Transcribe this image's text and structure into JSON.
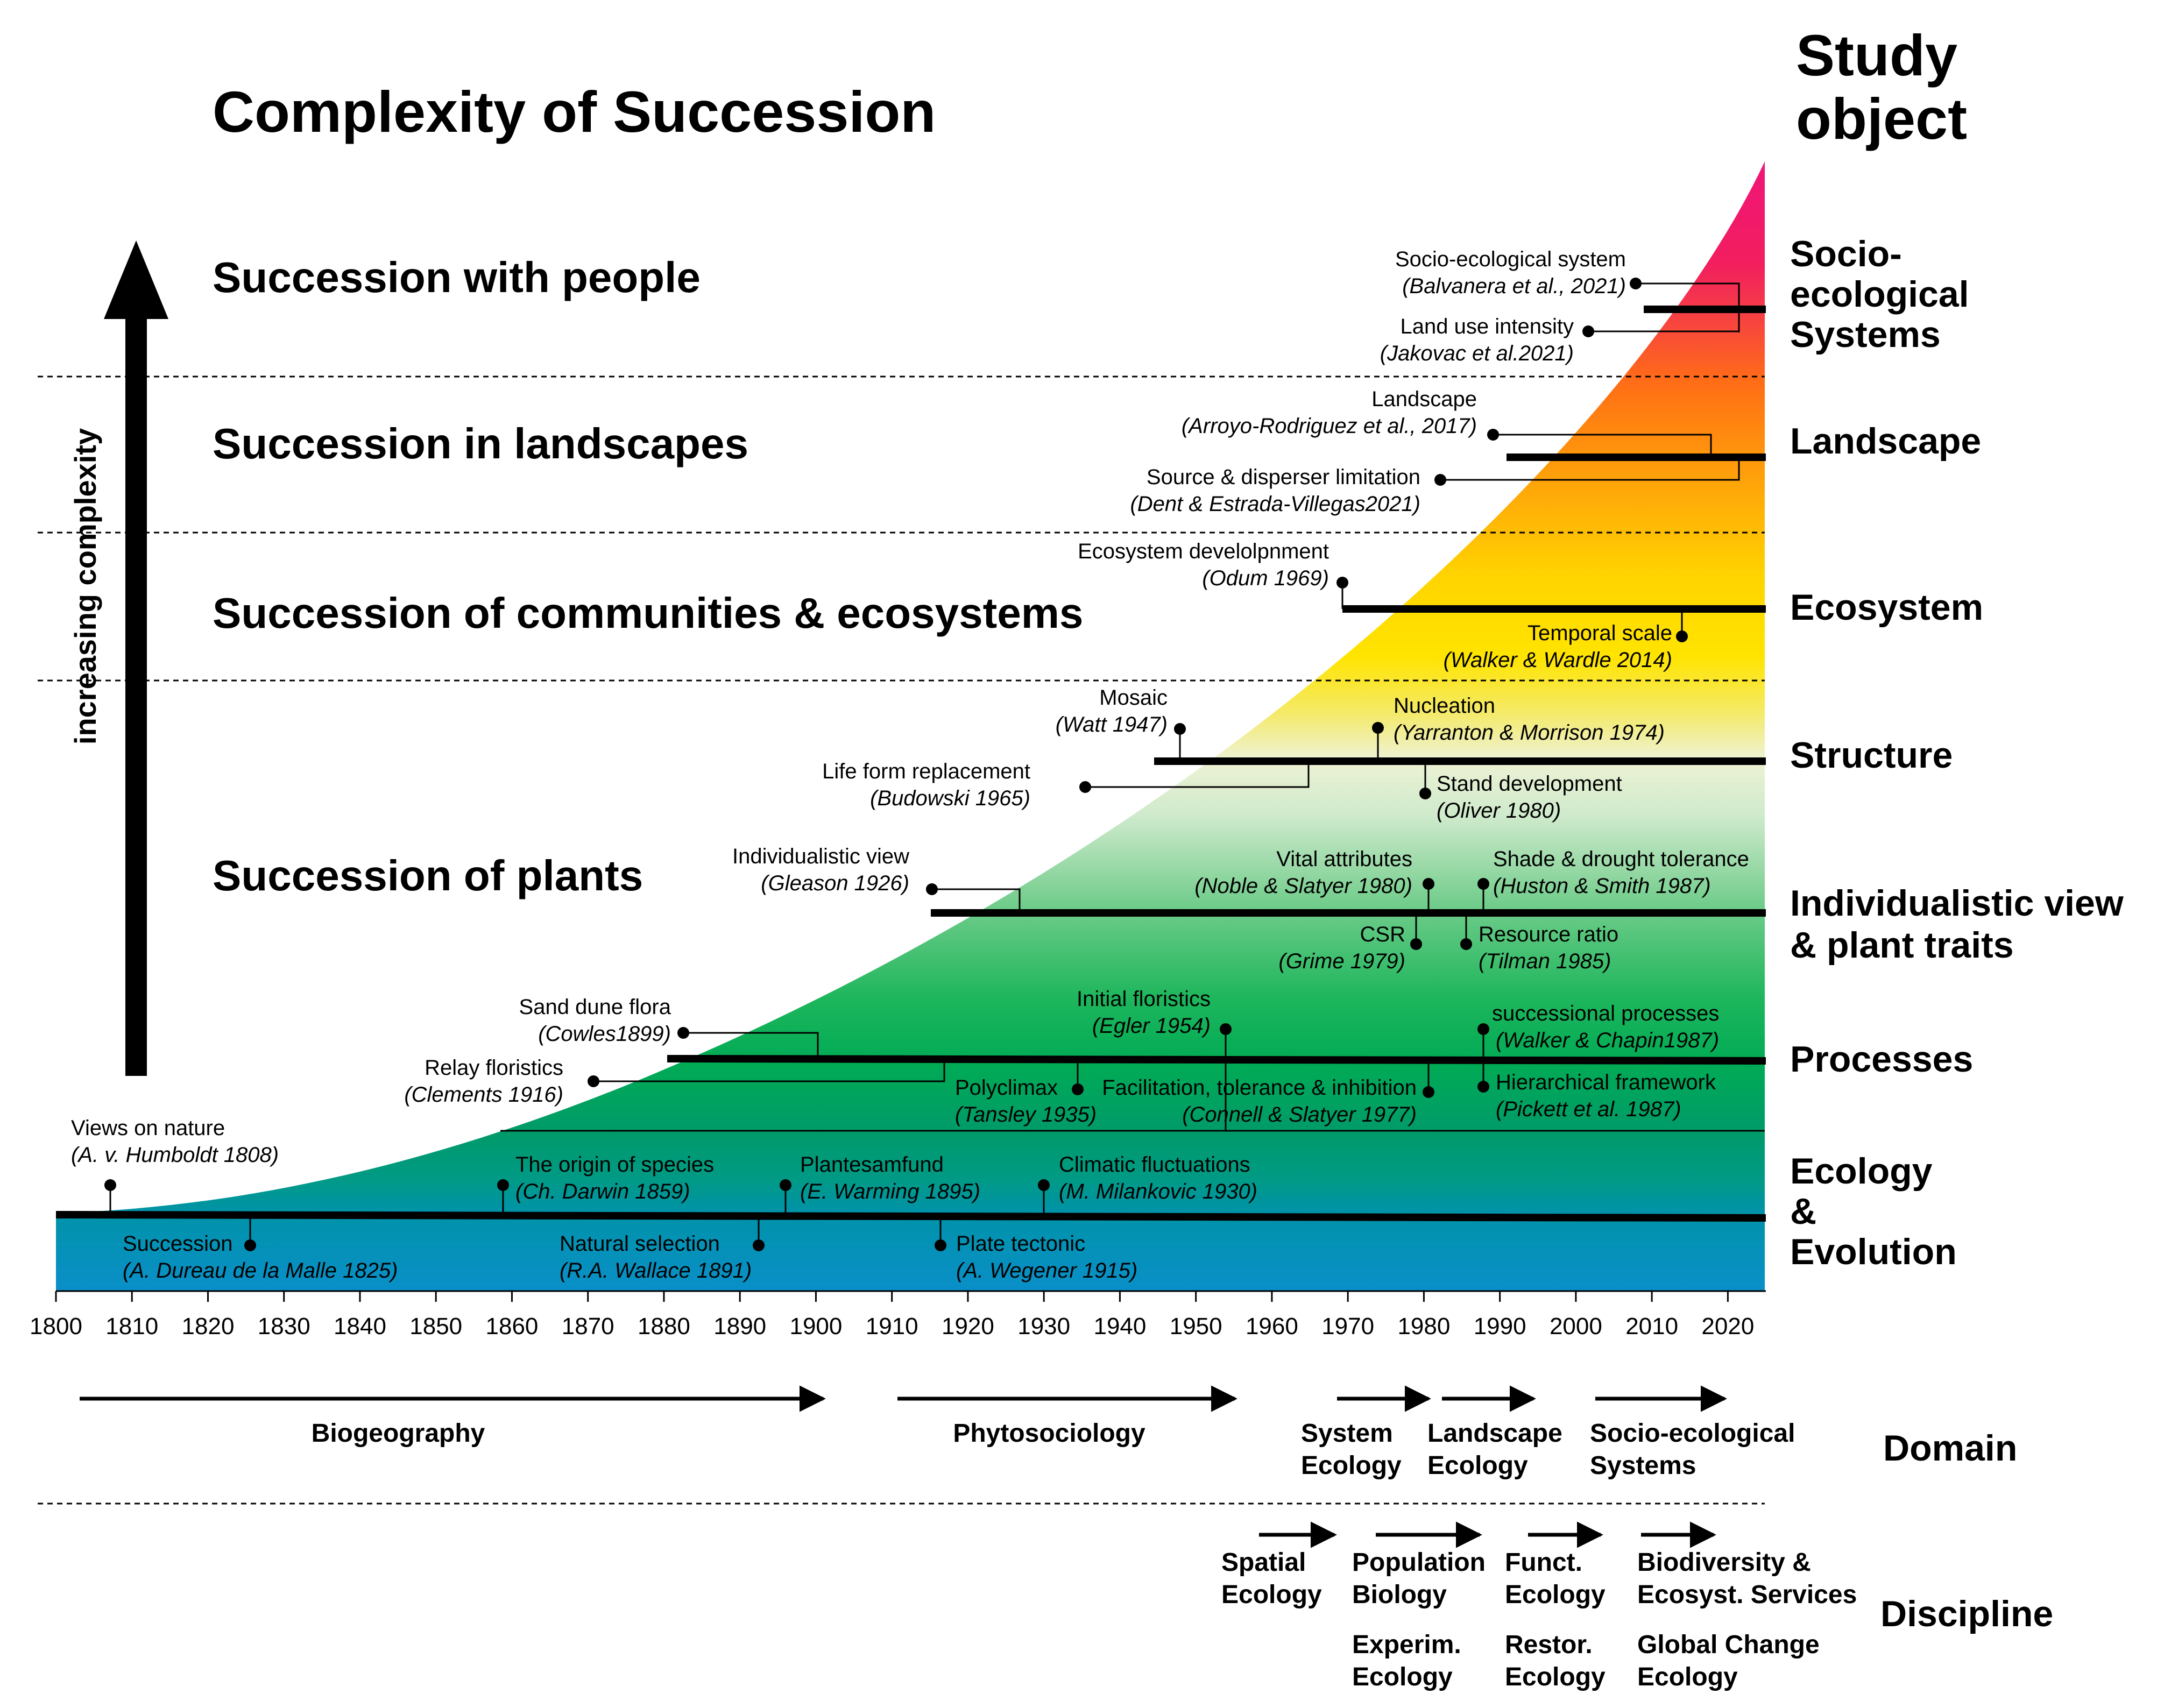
{
  "title": "Complexity of Succession",
  "y_axis_label": "increasing complexity",
  "study_object_heading": [
    "Study",
    "object"
  ],
  "levels": [
    {
      "label": "Succession with people"
    },
    {
      "label": "Succession in landscapes"
    },
    {
      "label": "Succession of communities & ecosystems"
    },
    {
      "label": "Succession of plants"
    }
  ],
  "study_objects": [
    {
      "lines": [
        "Socio-",
        "ecological",
        "Systems"
      ]
    },
    {
      "lines": [
        "Landscape"
      ]
    },
    {
      "lines": [
        "Ecosystem"
      ]
    },
    {
      "lines": [
        "Structure"
      ]
    },
    {
      "lines": [
        "Individualistic view",
        "& plant traits"
      ]
    },
    {
      "lines": [
        "Processes"
      ]
    },
    {
      "lines": [
        "Ecology",
        "&",
        "Evolution"
      ]
    }
  ],
  "colors": {
    "socio": "#f0167a",
    "landscape": "#ff7a10",
    "ecosystem": "#ffe000",
    "structure": "#cce8c2",
    "plants": "#00a35a",
    "ecology": "#009a86",
    "base": "#0a8fc9"
  },
  "x_axis": {
    "min": 1800,
    "max": 2025,
    "ticks": [
      1800,
      1810,
      1820,
      1830,
      1840,
      1850,
      1860,
      1870,
      1880,
      1890,
      1900,
      1910,
      1920,
      1930,
      1940,
      1950,
      1960,
      1970,
      1980,
      1990,
      2000,
      2010,
      2020
    ]
  },
  "events": [
    {
      "line1": "Views on nature",
      "line2": "(A. v. Humboldt 1808)"
    },
    {
      "line1": "Succession",
      "line2": "(A. Dureau de la Malle 1825)"
    },
    {
      "line1": "The origin of species",
      "line2": "(Ch. Darwin 1859)"
    },
    {
      "line1": "Natural selection",
      "line2": "(R.A. Wallace 1891)"
    },
    {
      "line1": "Plantesamfund",
      "line2": "(E. Warming 1895)"
    },
    {
      "line1": "Plate tectonic",
      "line2": "(A. Wegener 1915)"
    },
    {
      "line1": "Climatic fluctuations",
      "line2": "(M. Milankovic 1930)"
    },
    {
      "line1": "Relay floristics",
      "line2": "(Clements 1916)"
    },
    {
      "line1": "Sand dune flora",
      "line2": "(Cowles1899)"
    },
    {
      "line1": "Polyclimax",
      "line2": "(Tansley 1935)"
    },
    {
      "line1": "Initial floristics",
      "line2": "(Egler 1954)"
    },
    {
      "line1": "Facilitation, tolerance & inhibition",
      "line2": "(Connell & Slatyer 1977)"
    },
    {
      "line1": "successional processes",
      "line2": "(Walker & Chapin1987)"
    },
    {
      "line1": "Hierarchical framework",
      "line2": "(Pickett et al. 1987)"
    },
    {
      "line1": "Individualistic view",
      "line2": "(Gleason 1926)"
    },
    {
      "line1": "Vital attributes",
      "line2": "(Noble & Slatyer 1980)"
    },
    {
      "line1": "Shade & drought tolerance",
      "line2": "(Huston & Smith 1987)"
    },
    {
      "line1": "CSR",
      "line2": "(Grime 1979)"
    },
    {
      "line1": "Resource ratio",
      "line2": "(Tilman 1985)"
    },
    {
      "line1": "Mosaic",
      "line2": "(Watt 1947)"
    },
    {
      "line1": "Life form replacement",
      "line2": "(Budowski 1965)"
    },
    {
      "line1": "Nucleation",
      "line2": "(Yarranton & Morrison 1974)"
    },
    {
      "line1": "Stand development",
      "line2": "(Oliver 1980)"
    },
    {
      "line1": "Ecosystem develolpnment",
      "line2": "(Odum 1969)"
    },
    {
      "line1": "Temporal scale",
      "line2": "(Walker & Wardle 2014)"
    },
    {
      "line1": "Landscape",
      "line2": "(Arroyo-Rodriguez et al., 2017)"
    },
    {
      "line1": "Source & disperser limitation",
      "line2": "(Dent & Estrada-Villegas2021)"
    },
    {
      "line1": "Socio-ecological system",
      "line2": "(Balvanera et al., 2021)"
    },
    {
      "line1": "Land use intensity",
      "line2": "(Jakovac et al.2021)"
    }
  ],
  "domain_heading": "Domain",
  "domains": [
    {
      "lines": [
        "Biogeography"
      ]
    },
    {
      "lines": [
        "Phytosociology"
      ]
    },
    {
      "lines": [
        "System",
        "Ecology"
      ]
    },
    {
      "lines": [
        "Landscape",
        "Ecology"
      ]
    },
    {
      "lines": [
        "Socio-ecological",
        "Systems"
      ]
    }
  ],
  "discipline_heading": "Discipline",
  "disciplines": [
    {
      "lines": [
        "Spatial",
        "Ecology"
      ]
    },
    {
      "lines": [
        "Population",
        "Biology",
        "Experim.",
        "Ecology"
      ]
    },
    {
      "lines": [
        "Funct.",
        "Ecology",
        "Restor.",
        "Ecology"
      ]
    },
    {
      "lines": [
        "Biodiversity &",
        "Ecosyst. Services",
        "Global Change",
        "Ecology"
      ]
    }
  ]
}
